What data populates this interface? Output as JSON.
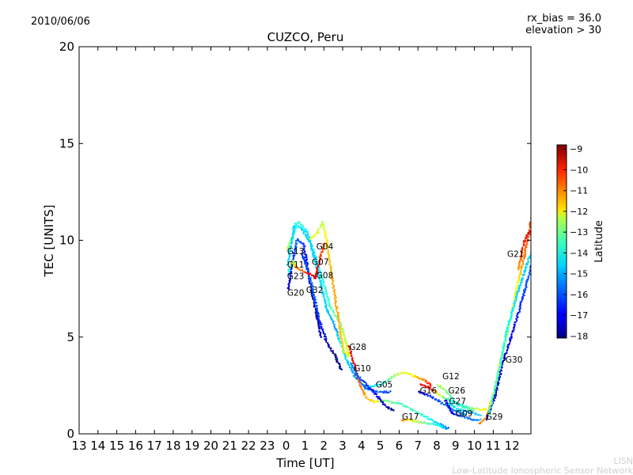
{
  "header": {
    "date": "2010/06/06",
    "rx_bias": "rx_bias = 36.0",
    "elevation": "elevation > 30"
  },
  "watermark": {
    "short": "LISN",
    "long": "Low-Latitude Ionospheric Sensor Network"
  },
  "chart_data": {
    "type": "scatter",
    "title": "CUZCO, Peru",
    "xlabel": "Time [UT]",
    "ylabel": "TEC [UNITS]",
    "xlim_hours_from_day1_0UT": [
      13,
      37
    ],
    "ylim": [
      0,
      20
    ],
    "grid": false,
    "x_ticks": [
      {
        "value": 13,
        "label": "13"
      },
      {
        "value": 14,
        "label": "14"
      },
      {
        "value": 15,
        "label": "15"
      },
      {
        "value": 16,
        "label": "16"
      },
      {
        "value": 17,
        "label": "17"
      },
      {
        "value": 18,
        "label": "18"
      },
      {
        "value": 19,
        "label": "19"
      },
      {
        "value": 20,
        "label": "20"
      },
      {
        "value": 21,
        "label": "21"
      },
      {
        "value": 22,
        "label": "22"
      },
      {
        "value": 23,
        "label": "23"
      },
      {
        "value": 24,
        "label": "0"
      },
      {
        "value": 25,
        "label": "1"
      },
      {
        "value": 26,
        "label": "2"
      },
      {
        "value": 27,
        "label": "3"
      },
      {
        "value": 28,
        "label": "4"
      },
      {
        "value": 29,
        "label": "5"
      },
      {
        "value": 30,
        "label": "6"
      },
      {
        "value": 31,
        "label": "7"
      },
      {
        "value": 32,
        "label": "8"
      },
      {
        "value": 33,
        "label": "9"
      },
      {
        "value": 34,
        "label": "10"
      },
      {
        "value": 35,
        "label": "11"
      },
      {
        "value": 36,
        "label": "12"
      }
    ],
    "y_ticks": [
      {
        "value": 0,
        "label": "0"
      },
      {
        "value": 5,
        "label": "5"
      },
      {
        "value": 10,
        "label": "10"
      },
      {
        "value": 15,
        "label": "15"
      },
      {
        "value": 20,
        "label": "20"
      }
    ],
    "colorbar": {
      "label": "Latitude",
      "range": [
        -18.1,
        -8.8
      ],
      "colormap": "jet",
      "ticks": [
        {
          "value": -9,
          "label": "−9"
        },
        {
          "value": -10,
          "label": "−10"
        },
        {
          "value": -11,
          "label": "−11"
        },
        {
          "value": -12,
          "label": "−12"
        },
        {
          "value": -13,
          "label": "−13"
        },
        {
          "value": -14,
          "label": "−14"
        },
        {
          "value": -15,
          "label": "−15"
        },
        {
          "value": -16,
          "label": "−16"
        },
        {
          "value": -17,
          "label": "−17"
        },
        {
          "value": -18,
          "label": "−18"
        }
      ]
    },
    "tracks_note": "points are [UT hour of 2nd day, TEC, latitude]",
    "tracks": [
      [
        [
          0.05,
          9.6,
          -13
        ],
        [
          0.5,
          10.8,
          -14.5
        ],
        [
          0.8,
          10.6,
          -15
        ],
        [
          1.3,
          9.8,
          -15
        ],
        [
          1.8,
          8.3,
          -14.5
        ],
        [
          2.3,
          6.6,
          -14
        ],
        [
          2.8,
          5.8,
          -13.5
        ],
        [
          3.0,
          5.3,
          -13
        ],
        [
          3.3,
          4.0,
          -12.5
        ]
      ],
      [
        [
          0.05,
          8.8,
          -15
        ],
        [
          0.4,
          10.8,
          -15
        ],
        [
          0.6,
          11,
          -14
        ],
        [
          1.1,
          10.4,
          -15
        ],
        [
          1.6,
          8.6,
          -15
        ],
        [
          2.1,
          6.5,
          -15
        ],
        [
          2.6,
          5.5,
          -15.5
        ],
        [
          2.9,
          4.5,
          -14.5
        ],
        [
          3.2,
          3.8,
          -15
        ],
        [
          3.6,
          3.0,
          -15.5
        ],
        [
          4.2,
          2.4,
          -16
        ],
        [
          4.8,
          2.2,
          -16
        ],
        [
          5.5,
          2.2,
          -16.5
        ]
      ],
      [
        [
          0.05,
          7.5,
          -17.5
        ],
        [
          0.3,
          9.0,
          -16.5
        ],
        [
          0.55,
          10.1,
          -16
        ],
        [
          0.9,
          9.8,
          -16.5
        ],
        [
          1.2,
          8.0,
          -17.5
        ],
        [
          1.5,
          6.5,
          -18
        ],
        [
          1.8,
          5.0,
          -17.5
        ]
      ],
      [
        [
          0.8,
          9.4,
          -16.5
        ],
        [
          1.3,
          7.8,
          -16
        ],
        [
          1.7,
          6.0,
          -16.5
        ],
        [
          2.1,
          4.8,
          -17.5
        ],
        [
          2.6,
          4.0,
          -18
        ],
        [
          2.9,
          3.3,
          -18
        ]
      ],
      [
        [
          1.2,
          10.1,
          -12.5
        ],
        [
          1.6,
          10.4,
          -12.5
        ],
        [
          1.9,
          11,
          -13
        ],
        [
          2.1,
          10.0,
          -12
        ],
        [
          2.4,
          8.0,
          -11.5
        ],
        [
          2.7,
          6.2,
          -11.5
        ],
        [
          3.0,
          4.3,
          -12
        ],
        [
          3.3,
          4.0,
          -12.5
        ]
      ],
      [
        [
          0.2,
          8.9,
          -11.5
        ],
        [
          0.7,
          8.5,
          -11
        ],
        [
          1.2,
          8.3,
          -10
        ],
        [
          1.5,
          8.1,
          -9.5
        ],
        [
          1.8,
          9.3,
          -10.5
        ],
        [
          2.0,
          9.9,
          -10.5
        ]
      ],
      [
        [
          0.05,
          8.3,
          -14.5
        ],
        [
          0.3,
          9.0,
          -13.5
        ],
        [
          0.5,
          8.6,
          -12
        ]
      ],
      [
        [
          3.3,
          4.6,
          -9.5
        ],
        [
          3.6,
          3.5,
          -10
        ],
        [
          3.9,
          2.5,
          -11
        ],
        [
          4.2,
          1.9,
          -11.5
        ],
        [
          4.6,
          1.7,
          -12
        ],
        [
          5.2,
          1.75,
          -13.5
        ],
        [
          6.0,
          1.6,
          -14
        ],
        [
          7.0,
          1.1,
          -14
        ],
        [
          8.0,
          0.6,
          -15
        ],
        [
          8.6,
          0.3,
          -16
        ]
      ],
      [
        [
          3.4,
          3.7,
          -15.5
        ],
        [
          3.7,
          3.1,
          -16
        ],
        [
          4.2,
          2.6,
          -16.5
        ],
        [
          4.8,
          2.0,
          -17
        ],
        [
          5.2,
          1.5,
          -17.5
        ],
        [
          5.7,
          1.2,
          -18
        ]
      ],
      [
        [
          4.4,
          2.5,
          -15
        ],
        [
          5.0,
          2.6,
          -14.5
        ],
        [
          5.8,
          3.1,
          -13
        ],
        [
          6.3,
          3.2,
          -12.5
        ],
        [
          6.8,
          3.0,
          -12
        ],
        [
          7.3,
          2.8,
          -11
        ],
        [
          7.7,
          2.5,
          -10
        ]
      ],
      [
        [
          6.1,
          0.75,
          -11
        ],
        [
          6.6,
          0.75,
          -12.5
        ],
        [
          7.3,
          0.6,
          -13.5
        ],
        [
          8.0,
          0.5,
          -14.5
        ],
        [
          8.5,
          0.3,
          -15.5
        ]
      ],
      [
        [
          7.0,
          2.2,
          -17.5
        ],
        [
          7.6,
          2.0,
          -16.5
        ],
        [
          8.3,
          1.6,
          -16
        ],
        [
          8.8,
          1.3,
          -16
        ],
        [
          9.5,
          1.0,
          -15.5
        ]
      ],
      [
        [
          7.1,
          2.6,
          -10
        ],
        [
          7.6,
          2.4,
          -10
        ],
        [
          8.2,
          2.0,
          -13
        ],
        [
          8.8,
          1.7,
          -14.5
        ],
        [
          9.4,
          1.4,
          -14
        ],
        [
          10.0,
          1.2,
          -13.5
        ]
      ],
      [
        [
          8.0,
          2.6,
          -13
        ],
        [
          8.5,
          2.2,
          -13.5
        ],
        [
          9.0,
          1.6,
          -14.5
        ],
        [
          9.6,
          1.4,
          -14
        ],
        [
          10.3,
          1.3,
          -12.5
        ],
        [
          10.6,
          1.3,
          -12
        ]
      ],
      [
        [
          8.4,
          1.8,
          -17.5
        ],
        [
          8.8,
          1.1,
          -17
        ],
        [
          9.3,
          0.95,
          -16
        ],
        [
          9.8,
          0.8,
          -16
        ],
        [
          10.3,
          0.75,
          -15.5
        ]
      ],
      [
        [
          8.6,
          1.6,
          -15
        ],
        [
          9.1,
          1.3,
          -14.5
        ],
        [
          9.6,
          1.2,
          -15.5
        ],
        [
          10.3,
          1.0,
          -15
        ]
      ],
      [
        [
          10.2,
          0.55,
          -11
        ],
        [
          10.6,
          0.9,
          -11.5
        ],
        [
          11.0,
          2.2,
          -12.5
        ],
        [
          11.4,
          4.0,
          -13
        ],
        [
          11.8,
          5.7,
          -13
        ],
        [
          12.2,
          7.5,
          -12.5
        ],
        [
          12.6,
          9.2,
          -11
        ],
        [
          13.0,
          11.2,
          -10.5
        ]
      ],
      [
        [
          12.3,
          8.5,
          -11.5
        ],
        [
          12.6,
          10.0,
          -10
        ],
        [
          12.9,
          10.5,
          -9.5
        ],
        [
          13.0,
          10.3,
          -10
        ]
      ],
      [
        [
          10.6,
          0.8,
          -17.5
        ],
        [
          11.0,
          1.8,
          -17.5
        ],
        [
          11.5,
          3.8,
          -17.5
        ],
        [
          12.0,
          5.3,
          -17
        ],
        [
          12.5,
          7.0,
          -16.5
        ],
        [
          13.0,
          8.8,
          -16
        ]
      ],
      [
        [
          10.7,
          1.0,
          -14
        ],
        [
          11.2,
          3.0,
          -14
        ],
        [
          11.7,
          5.5,
          -14.5
        ],
        [
          12.3,
          7.5,
          -15
        ],
        [
          13.0,
          9.5,
          -15
        ]
      ]
    ],
    "annotations": [
      {
        "text": "G13",
        "t": 0.05,
        "tec": 9.45
      },
      {
        "text": "G11",
        "t": 0.05,
        "tec": 9.25
      },
      {
        "text": "G07",
        "t": 0.35,
        "tec": 8.9
      },
      {
        "text": "G23",
        "t": 0.05,
        "tec": 8.65
      },
      {
        "text": "G20",
        "t": 0.05,
        "tec": 7.8
      },
      {
        "text": "G32",
        "t": 0.05,
        "tec": 7.45
      },
      {
        "text": "G04",
        "t": 1.6,
        "tec": 9.7
      },
      {
        "text": "G08",
        "t": 1.6,
        "tec": 8.2
      },
      {
        "text": "G28",
        "t": 3.35,
        "tec": 4.5
      },
      {
        "text": "G10",
        "t": 3.6,
        "tec": 3.4
      },
      {
        "text": "G05",
        "t": 4.75,
        "tec": 2.55
      },
      {
        "text": "G16",
        "t": 7.1,
        "tec": 2.25
      },
      {
        "text": "G26",
        "t": 7.6,
        "tec": 2.25
      },
      {
        "text": "G12",
        "t": 8.3,
        "tec": 2.5
      },
      {
        "text": "G27",
        "t": 8.65,
        "tec": 1.7
      },
      {
        "text": "G09",
        "t": 9.0,
        "tec": 1.55
      },
      {
        "text": "G29",
        "t": 10.6,
        "tec": 0.9
      },
      {
        "text": "G17",
        "t": 6.15,
        "tec": 0.9
      },
      {
        "text": "G30",
        "t": 11.65,
        "tec": 3.85
      },
      {
        "text": "G21",
        "t": 12.75,
        "tec": 9.3
      }
    ]
  }
}
